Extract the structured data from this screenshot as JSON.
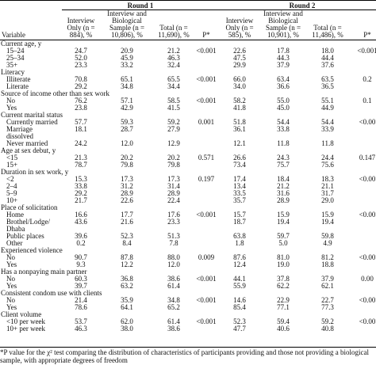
{
  "header": {
    "round1": "Round 1",
    "round2": "Round 2",
    "variable": "Variable",
    "columns": [
      "Interview Only (n = 884), %",
      "Interview and Biological Sample (n = 10,806), %",
      "Total (n = 11,690), %",
      "P*",
      "Interview Only (n = 585), %",
      "Interview and Biological Sample (n = 10,901), %",
      "Total (n = 11,486), %",
      "P*"
    ]
  },
  "sections": [
    {
      "title": "Current age, y",
      "rows": [
        {
          "label": "15–24",
          "r1": [
            "24.7",
            "20.9",
            "21.2"
          ],
          "p1": "<0.001",
          "r2": [
            "22.6",
            "17.8",
            "18.0"
          ],
          "p2": "<0.001"
        },
        {
          "label": "25–34",
          "r1": [
            "52.0",
            "45.9",
            "46.3"
          ],
          "r2": [
            "47.5",
            "44.3",
            "44.4"
          ]
        },
        {
          "label": "35+",
          "r1": [
            "23.3",
            "33.2",
            "32.4"
          ],
          "r2": [
            "29.9",
            "37.9",
            "37.6"
          ]
        }
      ]
    },
    {
      "title": "Literacy",
      "rows": [
        {
          "label": "Illiterate",
          "r1": [
            "70.8",
            "65.1",
            "65.5"
          ],
          "p1": "<0.001",
          "r2": [
            "66.0",
            "63.4",
            "63.5"
          ],
          "p2": "0.2"
        },
        {
          "label": "Literate",
          "r1": [
            "29.2",
            "34.8",
            "34.4"
          ],
          "r2": [
            "34.0",
            "36.6",
            "36.5"
          ]
        }
      ]
    },
    {
      "title": "Source of income other than sex work",
      "rows": [
        {
          "label": "No",
          "r1": [
            "76.2",
            "57.1",
            "58.5"
          ],
          "p1": "<0.001",
          "r2": [
            "58.2",
            "55.0",
            "55.1"
          ],
          "p2": "0.1"
        },
        {
          "label": "Yes",
          "r1": [
            "23.8",
            "42.9",
            "41.5"
          ],
          "r2": [
            "41.8",
            "45.0",
            "44.9"
          ]
        }
      ]
    },
    {
      "title": "Current marital status",
      "rows": [
        {
          "label": "Currently married",
          "r1": [
            "57.7",
            "59.3",
            "59.2"
          ],
          "p1": "0.001",
          "r2": [
            "51.8",
            "54.4",
            "54.4"
          ],
          "p2": "<0.00"
        },
        {
          "label": "Marriage dissolved",
          "r1": [
            "18.1",
            "28.7",
            "27.9"
          ],
          "r2": [
            "36.1",
            "33.8",
            "33.9"
          ]
        },
        {
          "label": "Never married",
          "r1": [
            "24.2",
            "12.0",
            "12.9"
          ],
          "r2": [
            "12.1",
            "11.8",
            "11.8"
          ]
        }
      ]
    },
    {
      "title": "Age at sex debut, y",
      "rows": [
        {
          "label": "<15",
          "r1": [
            "21.3",
            "20.2",
            "20.2"
          ],
          "p1": "0.571",
          "r2": [
            "26.6",
            "24.3",
            "24.4"
          ],
          "p2": "0.147"
        },
        {
          "label": "15+",
          "r1": [
            "78.7",
            "79.8",
            "79.8"
          ],
          "r2": [
            "73.4",
            "75.7",
            "75.6"
          ]
        }
      ]
    },
    {
      "title": "Duration in sex work, y",
      "rows": [
        {
          "label": "<2",
          "r1": [
            "15.3",
            "17.3",
            "17.3"
          ],
          "p1": "0.197",
          "r2": [
            "17.4",
            "18.4",
            "18.3"
          ],
          "p2": "<0.00"
        },
        {
          "label": "2–4",
          "r1": [
            "33.8",
            "31.2",
            "31.4"
          ],
          "r2": [
            "13.4",
            "21.2",
            "21.1"
          ]
        },
        {
          "label": "5–9",
          "r1": [
            "29.2",
            "28.9",
            "28.9"
          ],
          "r2": [
            "33.5",
            "31.6",
            "31.7"
          ]
        },
        {
          "label": "10+",
          "r1": [
            "21.7",
            "22.6",
            "22.4"
          ],
          "r2": [
            "35.7",
            "28.9",
            "29.0"
          ]
        }
      ]
    },
    {
      "title": "Place of solicitation",
      "rows": [
        {
          "label": "Home",
          "r1": [
            "16.6",
            "17.7",
            "17.6"
          ],
          "p1": "<0.001",
          "r2": [
            "15.7",
            "15.9",
            "15.9"
          ],
          "p2": "<0.00"
        },
        {
          "label": "Brothel/Lodge/ Dhaba",
          "r1": [
            "43.6",
            "21.6",
            "23.3"
          ],
          "r2": [
            "18.7",
            "19.4",
            "19.4"
          ]
        },
        {
          "label": "Public places",
          "r1": [
            "39.6",
            "52.3",
            "51.3"
          ],
          "r2": [
            "63.8",
            "59.7",
            "59.8"
          ]
        },
        {
          "label": "Other",
          "r1": [
            "0.2",
            "8.4",
            "7.8"
          ],
          "r2": [
            "1.8",
            "5.0",
            "4.9"
          ]
        }
      ]
    },
    {
      "title": "Experienced violence",
      "rows": [
        {
          "label": "No",
          "r1": [
            "90.7",
            "87.8",
            "88.0"
          ],
          "p1": "0.009",
          "r2": [
            "87.6",
            "81.0",
            "81.2"
          ],
          "p2": "<0.00"
        },
        {
          "label": "Yes",
          "r1": [
            "9.3",
            "12.2",
            "12.0"
          ],
          "r2": [
            "12.4",
            "19.0",
            "18.8"
          ]
        }
      ]
    },
    {
      "title": "Has a nonpaying main partner",
      "rows": [
        {
          "label": "No",
          "r1": [
            "60.3",
            "36.8",
            "38.6"
          ],
          "p1": "<0.001",
          "r2": [
            "44.1",
            "37.8",
            "37.9"
          ],
          "p2": "0.00"
        },
        {
          "label": "Yes",
          "r1": [
            "39.7",
            "63.2",
            "61.4"
          ],
          "r2": [
            "55.9",
            "62.2",
            "62.1"
          ]
        }
      ]
    },
    {
      "title": "Consistent condom use with clients",
      "rows": [
        {
          "label": "No",
          "r1": [
            "21.4",
            "35.9",
            "34.8"
          ],
          "p1": "<0.001",
          "r2": [
            "14.6",
            "22.9",
            "22.7"
          ],
          "p2": "<0.00"
        },
        {
          "label": "Yes",
          "r1": [
            "78.6",
            "64.1",
            "65.2"
          ],
          "r2": [
            "85.4",
            "77.1",
            "77.3"
          ]
        }
      ]
    },
    {
      "title": "Client volume",
      "rows": [
        {
          "label": "<10 per week",
          "r1": [
            "53.7",
            "62.0",
            "61.4"
          ],
          "p1": "<0.001",
          "r2": [
            "52.3",
            "59.4",
            "59.2"
          ],
          "p2": "<0.00"
        },
        {
          "label": "10+ per week",
          "r1": [
            "46.3",
            "38.0",
            "38.6"
          ],
          "r2": [
            "47.7",
            "40.6",
            "40.8"
          ]
        }
      ]
    }
  ],
  "footnote": "*P value for the χ² test comparing the distribution of characteristics of participants providing and those not providing a biological sample, with appropriate degrees of freedom"
}
